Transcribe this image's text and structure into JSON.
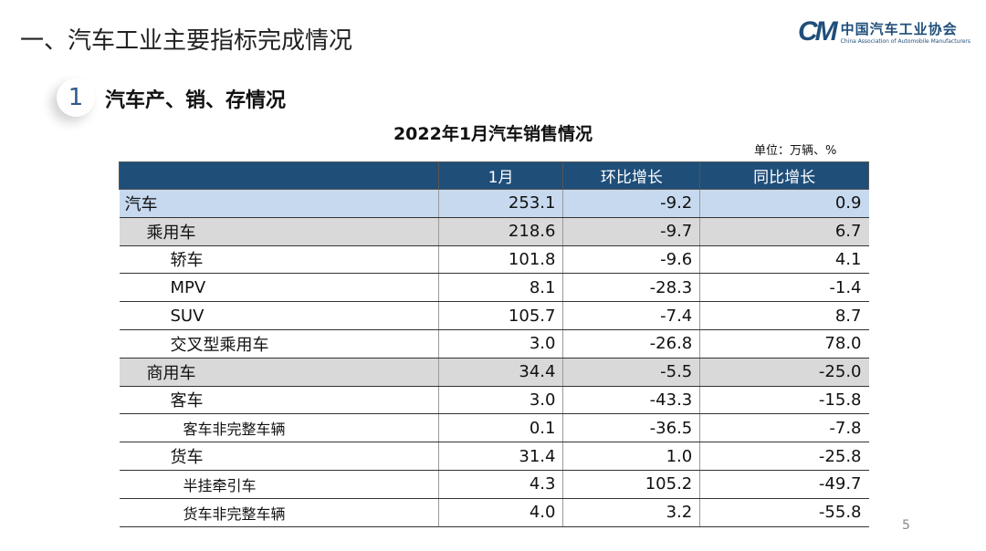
{
  "header": {
    "title": "一、汽车工业主要指标完成情况"
  },
  "logo": {
    "mark": "CM",
    "cn": "中国汽车工业协会",
    "en": "China Association of Automobile Manufacturers"
  },
  "section": {
    "number": "1",
    "title": "汽车产、销、存情况"
  },
  "table": {
    "title": "2022年1月汽车销售情况",
    "unit": "单位：万辆、%",
    "columns": [
      "",
      "1月",
      "环比增长",
      "同比增长"
    ],
    "rows": [
      {
        "label": "汽车",
        "month": "253.1",
        "mom": "-9.2",
        "yoy": "0.9"
      },
      {
        "label": "乘用车",
        "month": "218.6",
        "mom": "-9.7",
        "yoy": "6.7"
      },
      {
        "label": "轿车",
        "month": "101.8",
        "mom": "-9.6",
        "yoy": "4.1"
      },
      {
        "label": "MPV",
        "month": "8.1",
        "mom": "-28.3",
        "yoy": "-1.4"
      },
      {
        "label": "SUV",
        "month": "105.7",
        "mom": "-7.4",
        "yoy": "8.7"
      },
      {
        "label": "交叉型乘用车",
        "month": "3.0",
        "mom": "-26.8",
        "yoy": "78.0"
      },
      {
        "label": "商用车",
        "month": "34.4",
        "mom": "-5.5",
        "yoy": "-25.0"
      },
      {
        "label": "客车",
        "month": "3.0",
        "mom": "-43.3",
        "yoy": "-15.8"
      },
      {
        "label": "客车非完整车辆",
        "month": "0.1",
        "mom": "-36.5",
        "yoy": "-7.8"
      },
      {
        "label": "货车",
        "month": "31.4",
        "mom": "1.0",
        "yoy": "-25.8"
      },
      {
        "label": "半挂牵引车",
        "month": "4.3",
        "mom": "105.2",
        "yoy": "-49.7"
      },
      {
        "label": "货车非完整车辆",
        "month": "4.0",
        "mom": "3.2",
        "yoy": "-55.8"
      }
    ]
  },
  "page_number": "5",
  "colors": {
    "header_bg": "#1f4e79",
    "total_row": "#c6d9ef",
    "category_row": "#d9d9d9"
  }
}
